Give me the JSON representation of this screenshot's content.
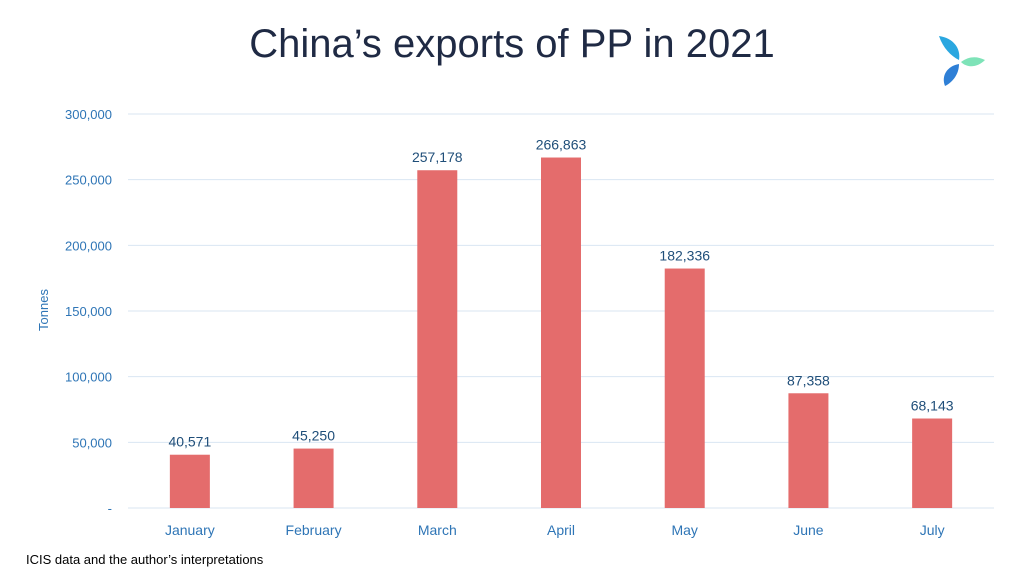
{
  "title": "China’s exports of PP in 2021",
  "source_note": "ICIS data and the author’s interpretations",
  "logo": {
    "icon": "icis-logo-icon",
    "colors": [
      "#2e7fd6",
      "#27c3e0",
      "#7ee3b8"
    ]
  },
  "colors": {
    "bar": "#e46c6c",
    "axis_text": "#2e75b6",
    "data_label": "#1f4e79",
    "grid": "#d9e6f2",
    "category_text": "#2e75b6"
  },
  "chart_data": {
    "type": "bar",
    "title": "China’s exports of PP in 2021",
    "xlabel": "",
    "ylabel": "Tonnes",
    "categories": [
      "January",
      "February",
      "March",
      "April",
      "May",
      "June",
      "July"
    ],
    "values": [
      40571,
      45250,
      257178,
      266863,
      182336,
      87358,
      68143
    ],
    "data_labels": [
      "40,571",
      "45,250",
      "257,178",
      "266,863",
      "182,336",
      "87,358",
      "68,143"
    ],
    "ylim": [
      0,
      300000
    ],
    "yticks": [
      0,
      50000,
      100000,
      150000,
      200000,
      250000,
      300000
    ],
    "ytick_labels": [
      "-",
      "50,000",
      "100,000",
      "150,000",
      "200,000",
      "250,000",
      "300,000"
    ],
    "grid": true,
    "legend": "none"
  }
}
